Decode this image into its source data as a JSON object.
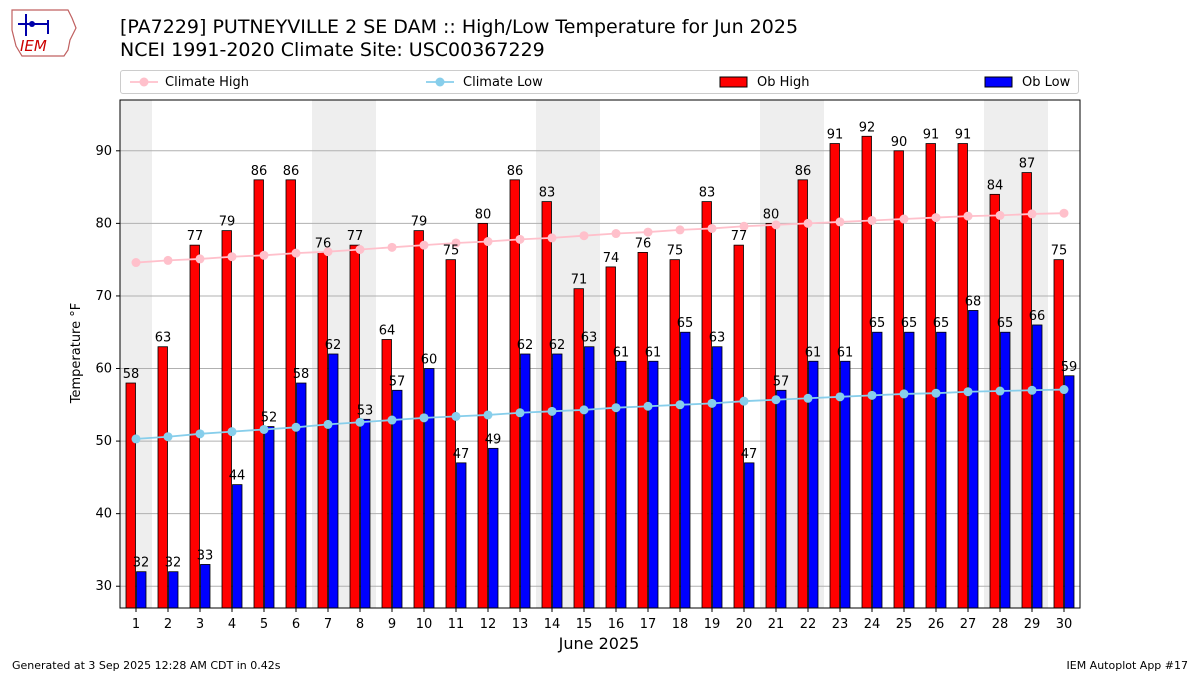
{
  "header": {
    "title_line1": "[PA7229] PUTNEYVILLE 2 SE DAM :: High/Low Temperature for Jun 2025",
    "title_line2": "NCEI 1991-2020 Climate Site: USC00367229",
    "logo_text": "IEM"
  },
  "legend": {
    "items": [
      {
        "label": "Climate High"
      },
      {
        "label": "Climate Low"
      },
      {
        "label": "Ob High"
      },
      {
        "label": "Ob Low"
      }
    ]
  },
  "footer": {
    "left": "Generated at 3 Sep 2025 12:28 AM CDT in 0.42s",
    "right": "IEM Autoplot App #17"
  },
  "colors": {
    "ob_high": "#ff0000",
    "ob_low": "#0000ff",
    "climate_high": "#ffc0cb",
    "climate_low": "#87ceeb",
    "weekend_shade": "#eeeeee",
    "grid": "#b0b0b0"
  },
  "chart_data": {
    "type": "bar",
    "xlabel": "June 2025",
    "ylabel": "Temperature °F",
    "ylim": [
      27,
      97
    ],
    "yticks": [
      30,
      40,
      50,
      60,
      70,
      80,
      90
    ],
    "grid": "horizontal",
    "legend_position": "top",
    "categories": [
      "1",
      "2",
      "3",
      "4",
      "5",
      "6",
      "7",
      "8",
      "9",
      "10",
      "11",
      "12",
      "13",
      "14",
      "15",
      "16",
      "17",
      "18",
      "19",
      "20",
      "21",
      "22",
      "23",
      "24",
      "25",
      "26",
      "27",
      "28",
      "29",
      "30"
    ],
    "weekend_days": [
      1,
      7,
      8,
      14,
      15,
      21,
      22,
      28,
      29
    ],
    "series": [
      {
        "name": "Ob High",
        "kind": "bar",
        "values": [
          58,
          63,
          77,
          79,
          86,
          86,
          76,
          77,
          64,
          79,
          75,
          80,
          86,
          83,
          71,
          74,
          76,
          75,
          83,
          77,
          80,
          86,
          91,
          92,
          90,
          91,
          91,
          84,
          87,
          75
        ]
      },
      {
        "name": "Ob Low",
        "kind": "bar",
        "values": [
          32,
          32,
          33,
          44,
          52,
          58,
          62,
          53,
          57,
          60,
          47,
          49,
          62,
          62,
          63,
          61,
          61,
          65,
          63,
          47,
          57,
          61,
          61,
          65,
          65,
          65,
          68,
          65,
          66,
          59
        ]
      },
      {
        "name": "Climate High",
        "kind": "line",
        "values": [
          74.6,
          74.9,
          75.1,
          75.4,
          75.6,
          75.9,
          76.1,
          76.4,
          76.7,
          77.0,
          77.3,
          77.5,
          77.8,
          78.0,
          78.3,
          78.6,
          78.8,
          79.1,
          79.3,
          79.6,
          79.8,
          80.0,
          80.2,
          80.4,
          80.6,
          80.8,
          81.0,
          81.1,
          81.3,
          81.4
        ]
      },
      {
        "name": "Climate Low",
        "kind": "line",
        "values": [
          50.3,
          50.6,
          51.0,
          51.3,
          51.6,
          51.9,
          52.3,
          52.6,
          52.9,
          53.2,
          53.4,
          53.6,
          53.9,
          54.1,
          54.3,
          54.6,
          54.8,
          55.0,
          55.2,
          55.5,
          55.7,
          55.9,
          56.1,
          56.3,
          56.5,
          56.6,
          56.8,
          56.9,
          57.0,
          57.1
        ]
      }
    ]
  }
}
